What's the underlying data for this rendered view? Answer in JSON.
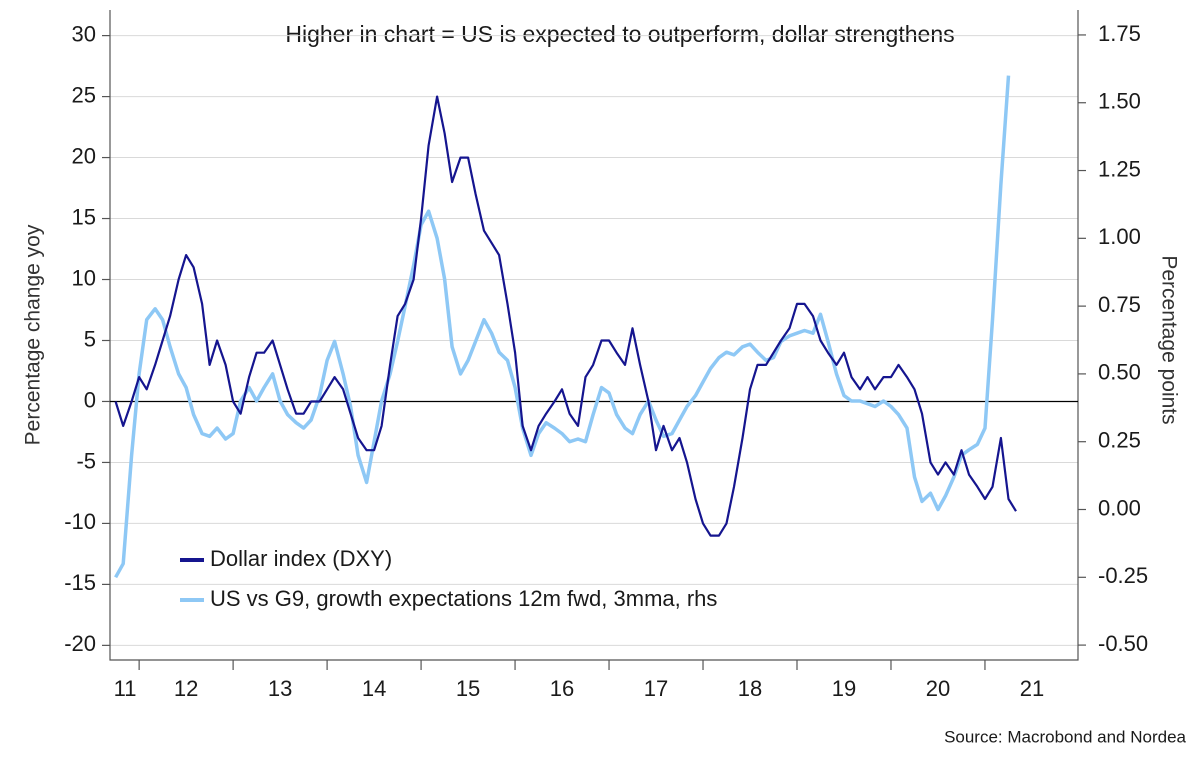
{
  "chart_data": {
    "type": "line",
    "title": "Higher in chart = US is expected to outperform, dollar strengthens",
    "ylabel": "Percentage change yoy",
    "y2label": "Percentage points",
    "source": "Source: Macrobond and Nordea",
    "x": [
      2011.75,
      2011.83,
      2011.92,
      2012.0,
      2012.08,
      2012.17,
      2012.25,
      2012.33,
      2012.42,
      2012.5,
      2012.58,
      2012.67,
      2012.75,
      2012.83,
      2012.92,
      2013.0,
      2013.08,
      2013.17,
      2013.25,
      2013.33,
      2013.42,
      2013.5,
      2013.58,
      2013.67,
      2013.75,
      2013.83,
      2013.92,
      2014.0,
      2014.08,
      2014.17,
      2014.25,
      2014.33,
      2014.42,
      2014.5,
      2014.58,
      2014.67,
      2014.75,
      2014.83,
      2014.92,
      2015.0,
      2015.08,
      2015.17,
      2015.25,
      2015.33,
      2015.42,
      2015.5,
      2015.58,
      2015.67,
      2015.75,
      2015.83,
      2015.92,
      2016.0,
      2016.08,
      2016.17,
      2016.25,
      2016.33,
      2016.42,
      2016.5,
      2016.58,
      2016.67,
      2016.75,
      2016.83,
      2016.92,
      2017.0,
      2017.08,
      2017.17,
      2017.25,
      2017.33,
      2017.42,
      2017.5,
      2017.58,
      2017.67,
      2017.75,
      2017.83,
      2017.92,
      2018.0,
      2018.08,
      2018.17,
      2018.25,
      2018.33,
      2018.42,
      2018.5,
      2018.58,
      2018.67,
      2018.75,
      2018.83,
      2018.92,
      2019.0,
      2019.08,
      2019.17,
      2019.25,
      2019.33,
      2019.42,
      2019.5,
      2019.58,
      2019.67,
      2019.75,
      2019.83,
      2019.92,
      2020.0,
      2020.08,
      2020.17,
      2020.25,
      2020.33,
      2020.42,
      2020.5,
      2020.58,
      2020.67,
      2020.75,
      2020.83,
      2020.92,
      2021.0,
      2021.08,
      2021.17,
      2021.25,
      2021.33
    ],
    "xlim": [
      2011.69,
      2021.99
    ],
    "xticks": [
      {
        "value": 2011.85,
        "label": "11"
      },
      {
        "value": 2012.5,
        "label": "12"
      },
      {
        "value": 2013.5,
        "label": "13"
      },
      {
        "value": 2014.5,
        "label": "14"
      },
      {
        "value": 2015.5,
        "label": "15"
      },
      {
        "value": 2016.5,
        "label": "16"
      },
      {
        "value": 2017.5,
        "label": "17"
      },
      {
        "value": 2018.5,
        "label": "18"
      },
      {
        "value": 2019.5,
        "label": "19"
      },
      {
        "value": 2020.5,
        "label": "20"
      },
      {
        "value": 2021.5,
        "label": "21"
      }
    ],
    "xminor": [
      2012,
      2013,
      2014,
      2015,
      2016,
      2017,
      2018,
      2019,
      2020,
      2021
    ],
    "ylim": [
      -21.2,
      32.1
    ],
    "yticks": [
      30,
      25,
      20,
      15,
      10,
      5,
      0,
      -5,
      -10,
      -15,
      -20
    ],
    "y2lim": [
      -0.555,
      1.842
    ],
    "y2ticks": [
      1.75,
      {
        "value": 1.5,
        "label": "1.50"
      },
      1.25,
      {
        "value": 1.0,
        "label": "1.00"
      },
      0.75,
      {
        "value": 0.5,
        "label": "0.50"
      },
      0.25,
      {
        "value": 0,
        "label": "0.00"
      },
      -0.25,
      {
        "value": -0.5,
        "label": "-0.50"
      }
    ],
    "grid": true,
    "legend": "lower left",
    "series": [
      {
        "name": "Dollar index (DXY)",
        "color": "#15158f",
        "values": [
          0,
          -2,
          0,
          2,
          1,
          3,
          5,
          7,
          10,
          12,
          11,
          8,
          3,
          5,
          3,
          0,
          -1,
          2,
          4,
          4,
          5,
          3,
          1,
          -1,
          -1,
          0,
          0,
          1,
          2,
          1,
          -1,
          -3,
          -4,
          -4,
          -2,
          3,
          7,
          8,
          10,
          15,
          21,
          25,
          22,
          18,
          20,
          20,
          17,
          14,
          13,
          12,
          8,
          4,
          -2,
          -4,
          -2,
          -1,
          0,
          1,
          -1,
          -2,
          2,
          3,
          5,
          5,
          4,
          3,
          6,
          3,
          0,
          -4,
          -2,
          -4,
          -3,
          -5,
          -8,
          -10,
          -11,
          -11,
          -10,
          -7,
          -3,
          1,
          3,
          3,
          4,
          5,
          6,
          8,
          8,
          7,
          5,
          4,
          3,
          4,
          2,
          1,
          2,
          1,
          2,
          2,
          3,
          2,
          1,
          -1,
          -5,
          -6,
          -5,
          -6,
          -4,
          -6,
          -7,
          -8,
          -7,
          -3,
          -8,
          -9
        ]
      },
      {
        "name": "US vs G9, growth expectations 12m fwd, 3mma, rhs",
        "color": "#8ec8f5",
        "axis": "y2",
        "values": [
          -0.25,
          -0.2,
          0.2,
          0.5,
          0.7,
          0.74,
          0.7,
          0.6,
          0.5,
          0.45,
          0.35,
          0.28,
          0.27,
          0.3,
          0.26,
          0.28,
          0.4,
          0.45,
          0.4,
          0.45,
          0.5,
          0.4,
          0.35,
          0.32,
          0.3,
          0.33,
          0.42,
          0.55,
          0.62,
          0.5,
          0.38,
          0.2,
          0.1,
          0.25,
          0.4,
          0.5,
          0.62,
          0.75,
          0.9,
          1.05,
          1.1,
          1.0,
          0.85,
          0.6,
          0.5,
          0.55,
          0.62,
          0.7,
          0.65,
          0.58,
          0.55,
          0.45,
          0.3,
          0.2,
          0.28,
          0.32,
          0.3,
          0.28,
          0.25,
          0.26,
          0.25,
          0.35,
          0.45,
          0.43,
          0.35,
          0.3,
          0.28,
          0.35,
          0.4,
          0.33,
          0.27,
          0.28,
          0.33,
          0.38,
          0.42,
          0.47,
          0.52,
          0.56,
          0.58,
          0.57,
          0.6,
          0.61,
          0.58,
          0.55,
          0.56,
          0.62,
          0.64,
          0.65,
          0.66,
          0.65,
          0.72,
          0.62,
          0.5,
          0.42,
          0.4,
          0.4,
          0.39,
          0.38,
          0.4,
          0.38,
          0.35,
          0.3,
          0.12,
          0.03,
          0.06,
          0.0,
          0.05,
          0.12,
          0.2,
          0.22,
          0.24,
          0.3,
          0.7,
          1.2,
          1.6,
          null
        ]
      }
    ]
  }
}
